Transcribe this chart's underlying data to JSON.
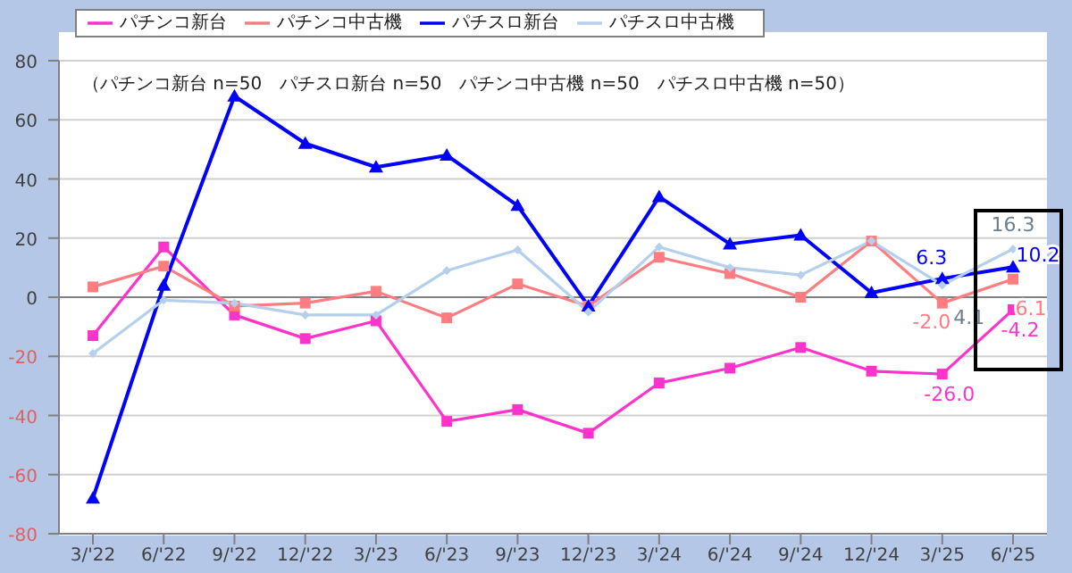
{
  "chart_data": {
    "type": "line",
    "categories": [
      "3/'22",
      "6/'22",
      "9/'22",
      "12/'22",
      "3/'23",
      "6/'23",
      "9/'23",
      "12/'23",
      "3/'24",
      "6/'24",
      "9/'24",
      "12/'24",
      "3/'25",
      "6/'25"
    ],
    "series": [
      {
        "name": "パチンコ新台",
        "color": "#ff33cc",
        "marker": "square",
        "values": [
          -13,
          17,
          -6,
          -14,
          -8,
          -42,
          -38,
          -46,
          -29,
          -24,
          -17,
          -25,
          -26.0,
          -4.2
        ],
        "value_labels": [
          null,
          null,
          null,
          null,
          null,
          null,
          null,
          null,
          null,
          null,
          null,
          null,
          "-26.0",
          "-4.2"
        ]
      },
      {
        "name": "パチンコ中古機",
        "color": "#ff7c80",
        "marker": "square",
        "values": [
          3.5,
          10.5,
          -3,
          -2,
          2,
          -7,
          4.5,
          -3,
          13.5,
          8,
          0,
          19,
          -2.0,
          6.1
        ],
        "value_labels": [
          null,
          null,
          null,
          null,
          null,
          null,
          null,
          null,
          null,
          null,
          null,
          null,
          "-2.0",
          "6.1"
        ]
      },
      {
        "name": "パチスロ新台",
        "color": "#0000ff",
        "marker": "triangle",
        "values": [
          -68,
          4,
          68,
          52,
          44,
          48,
          31,
          -3,
          34,
          18,
          21,
          1.5,
          6.3,
          10.2
        ],
        "value_labels": [
          null,
          null,
          null,
          null,
          null,
          null,
          null,
          null,
          null,
          null,
          null,
          null,
          "6.3",
          "10.2"
        ]
      },
      {
        "name": "パチスロ中古機",
        "color": "#b4d0ec",
        "marker": "diamond",
        "values": [
          -19,
          -1,
          -2,
          -6,
          -6,
          9,
          16,
          -5,
          17,
          10,
          7.5,
          19,
          4.1,
          16.3
        ],
        "value_labels": [
          null,
          null,
          null,
          null,
          null,
          null,
          null,
          null,
          null,
          null,
          null,
          null,
          "4.1",
          "16.3"
        ]
      }
    ],
    "ylim": [
      -80,
      80
    ],
    "yticks": [
      -80,
      -60,
      -40,
      -20,
      0,
      20,
      40,
      60,
      80
    ],
    "grid": "y",
    "legend": "top",
    "annotations": [
      "（パチンコ新台 n=50　パチスロ新台 n=50　パチンコ中古機 n=50　パチスロ中古機 n=50）"
    ]
  }
}
